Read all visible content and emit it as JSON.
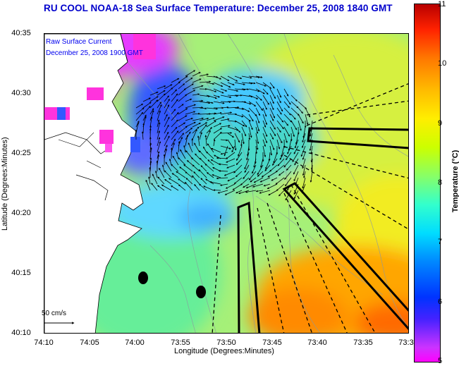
{
  "title": "RU COOL  NOAA-18  Sea Surface Temperature:  December 25, 2008 1840 GMT",
  "annotation": {
    "line1": "Raw Surface Current",
    "line2": "December 25, 2008 1900 GMT"
  },
  "scale_label": "50 cm/s",
  "axes": {
    "xlabel": "Longitude (Degrees:Minutes)",
    "ylabel": "Latitude (Degrees:Minutes)",
    "x_ticks": [
      "74:10",
      "74:05",
      "74:00",
      "73:55",
      "73:50",
      "73:45",
      "73:40",
      "73:35",
      "73:3"
    ],
    "y_ticks": [
      "40:35",
      "40:30",
      "40:25",
      "40:20",
      "40:15",
      "40:10"
    ]
  },
  "colorbar": {
    "title": "Temperature (°C)",
    "ticks": [
      "11",
      "10",
      "9",
      "8",
      "7",
      "6",
      "5"
    ],
    "range": [
      5,
      11
    ]
  },
  "map": {
    "extent_lon": [
      "74:10 W",
      "73:30 W"
    ],
    "extent_lat": [
      "40:10 N",
      "40:35 N"
    ],
    "projection": "rectangular lon/lat",
    "features": [
      "SST field",
      "coastline",
      "bathymetry contours",
      "surface current vectors",
      "survey line boxes (dashed and solid)",
      "two black station markers"
    ],
    "palette": {
      "cold": "#ff00ff",
      "cool": "#0033ff",
      "mid": "#00ddff",
      "warm": "#ffee00",
      "hot": "#b80000"
    }
  }
}
